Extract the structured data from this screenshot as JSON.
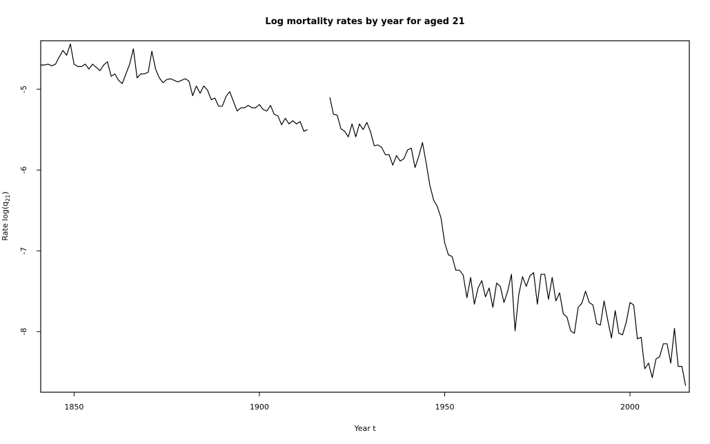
{
  "chart_data": {
    "type": "line",
    "title": "Log mortality rates by year for aged 21",
    "xlabel": "Year t",
    "ylabel": {
      "prefix": "Rate log(q",
      "subscript": "21",
      "suffix": ")"
    },
    "xlim": [
      1841,
      2016
    ],
    "ylim": [
      -8.75,
      -4.4
    ],
    "xticks": [
      1850,
      1900,
      1950,
      2000
    ],
    "yticks": [
      -8,
      -7,
      -6,
      -5
    ],
    "grid": false,
    "series": [
      {
        "values": [
          [
            1841,
            -4.7
          ],
          [
            1842,
            -4.7
          ],
          [
            1843,
            -4.69
          ],
          [
            1844,
            -4.71
          ],
          [
            1845,
            -4.69
          ],
          [
            1846,
            -4.6
          ],
          [
            1847,
            -4.52
          ],
          [
            1848,
            -4.58
          ],
          [
            1849,
            -4.44
          ],
          [
            1850,
            -4.69
          ],
          [
            1851,
            -4.72
          ],
          [
            1852,
            -4.72
          ],
          [
            1853,
            -4.69
          ],
          [
            1854,
            -4.75
          ],
          [
            1855,
            -4.69
          ],
          [
            1856,
            -4.73
          ],
          [
            1857,
            -4.77
          ],
          [
            1858,
            -4.7
          ],
          [
            1859,
            -4.66
          ],
          [
            1860,
            -4.84
          ],
          [
            1861,
            -4.81
          ],
          [
            1862,
            -4.89
          ],
          [
            1863,
            -4.93
          ],
          [
            1864,
            -4.81
          ],
          [
            1865,
            -4.69
          ],
          [
            1866,
            -4.5
          ],
          [
            1867,
            -4.86
          ],
          [
            1868,
            -4.81
          ],
          [
            1869,
            -4.81
          ],
          [
            1870,
            -4.79
          ],
          [
            1871,
            -4.53
          ],
          [
            1872,
            -4.75
          ],
          [
            1873,
            -4.86
          ],
          [
            1874,
            -4.92
          ],
          [
            1875,
            -4.88
          ],
          [
            1876,
            -4.87
          ],
          [
            1877,
            -4.89
          ],
          [
            1878,
            -4.91
          ],
          [
            1879,
            -4.89
          ],
          [
            1880,
            -4.87
          ],
          [
            1881,
            -4.9
          ],
          [
            1882,
            -5.08
          ],
          [
            1883,
            -4.96
          ],
          [
            1884,
            -5.05
          ],
          [
            1885,
            -4.96
          ],
          [
            1886,
            -5.01
          ],
          [
            1887,
            -5.13
          ],
          [
            1888,
            -5.11
          ],
          [
            1889,
            -5.21
          ],
          [
            1890,
            -5.21
          ],
          [
            1891,
            -5.09
          ],
          [
            1892,
            -5.03
          ],
          [
            1893,
            -5.15
          ],
          [
            1894,
            -5.27
          ],
          [
            1895,
            -5.23
          ],
          [
            1896,
            -5.23
          ],
          [
            1897,
            -5.2
          ],
          [
            1898,
            -5.23
          ],
          [
            1899,
            -5.23
          ],
          [
            1900,
            -5.19
          ],
          [
            1901,
            -5.25
          ],
          [
            1902,
            -5.27
          ],
          [
            1903,
            -5.2
          ],
          [
            1904,
            -5.31
          ],
          [
            1905,
            -5.33
          ],
          [
            1906,
            -5.44
          ],
          [
            1907,
            -5.36
          ],
          [
            1908,
            -5.43
          ],
          [
            1909,
            -5.39
          ],
          [
            1910,
            -5.43
          ],
          [
            1911,
            -5.4
          ],
          [
            1912,
            -5.52
          ],
          [
            1913,
            -5.5
          ],
          null,
          [
            1919,
            -5.1
          ],
          [
            1920,
            -5.31
          ],
          [
            1921,
            -5.32
          ],
          [
            1922,
            -5.49
          ],
          [
            1923,
            -5.52
          ],
          [
            1924,
            -5.59
          ],
          [
            1925,
            -5.43
          ],
          [
            1926,
            -5.59
          ],
          [
            1927,
            -5.43
          ],
          [
            1928,
            -5.5
          ],
          [
            1929,
            -5.41
          ],
          [
            1930,
            -5.53
          ],
          [
            1931,
            -5.7
          ],
          [
            1932,
            -5.69
          ],
          [
            1933,
            -5.72
          ],
          [
            1934,
            -5.81
          ],
          [
            1935,
            -5.81
          ],
          [
            1936,
            -5.94
          ],
          [
            1937,
            -5.82
          ],
          [
            1938,
            -5.89
          ],
          [
            1939,
            -5.86
          ],
          [
            1940,
            -5.75
          ],
          [
            1941,
            -5.73
          ],
          [
            1942,
            -5.97
          ],
          [
            1943,
            -5.83
          ],
          [
            1944,
            -5.66
          ],
          [
            1945,
            -5.91
          ],
          [
            1946,
            -6.19
          ],
          [
            1947,
            -6.37
          ],
          [
            1948,
            -6.45
          ],
          [
            1949,
            -6.59
          ],
          [
            1950,
            -6.9
          ],
          [
            1951,
            -7.05
          ],
          [
            1952,
            -7.07
          ],
          [
            1953,
            -7.24
          ],
          [
            1954,
            -7.24
          ],
          [
            1955,
            -7.3
          ],
          [
            1956,
            -7.58
          ],
          [
            1957,
            -7.33
          ],
          [
            1958,
            -7.66
          ],
          [
            1959,
            -7.46
          ],
          [
            1960,
            -7.37
          ],
          [
            1961,
            -7.57
          ],
          [
            1962,
            -7.46
          ],
          [
            1963,
            -7.7
          ],
          [
            1964,
            -7.4
          ],
          [
            1965,
            -7.44
          ],
          [
            1966,
            -7.64
          ],
          [
            1967,
            -7.5
          ],
          [
            1968,
            -7.29
          ],
          [
            1969,
            -7.99
          ],
          [
            1970,
            -7.54
          ],
          [
            1971,
            -7.32
          ],
          [
            1972,
            -7.44
          ],
          [
            1973,
            -7.31
          ],
          [
            1974,
            -7.27
          ],
          [
            1975,
            -7.66
          ],
          [
            1976,
            -7.29
          ],
          [
            1977,
            -7.29
          ],
          [
            1978,
            -7.6
          ],
          [
            1979,
            -7.33
          ],
          [
            1980,
            -7.62
          ],
          [
            1981,
            -7.52
          ],
          [
            1982,
            -7.78
          ],
          [
            1983,
            -7.82
          ],
          [
            1984,
            -7.99
          ],
          [
            1985,
            -8.02
          ],
          [
            1986,
            -7.7
          ],
          [
            1987,
            -7.65
          ],
          [
            1988,
            -7.5
          ],
          [
            1989,
            -7.64
          ],
          [
            1990,
            -7.67
          ],
          [
            1991,
            -7.9
          ],
          [
            1992,
            -7.92
          ],
          [
            1993,
            -7.62
          ],
          [
            1994,
            -7.86
          ],
          [
            1995,
            -8.08
          ],
          [
            1996,
            -7.74
          ],
          [
            1997,
            -8.02
          ],
          [
            1998,
            -8.04
          ],
          [
            1999,
            -7.88
          ],
          [
            2000,
            -7.64
          ],
          [
            2001,
            -7.67
          ],
          [
            2002,
            -8.09
          ],
          [
            2003,
            -8.07
          ],
          [
            2004,
            -8.46
          ],
          [
            2005,
            -8.39
          ],
          [
            2006,
            -8.57
          ],
          [
            2007,
            -8.34
          ],
          [
            2008,
            -8.31
          ],
          [
            2009,
            -8.15
          ],
          [
            2010,
            -8.15
          ],
          [
            2011,
            -8.39
          ],
          [
            2012,
            -7.96
          ],
          [
            2013,
            -8.43
          ],
          [
            2014,
            -8.43
          ],
          [
            2015,
            -8.67
          ]
        ]
      }
    ]
  }
}
